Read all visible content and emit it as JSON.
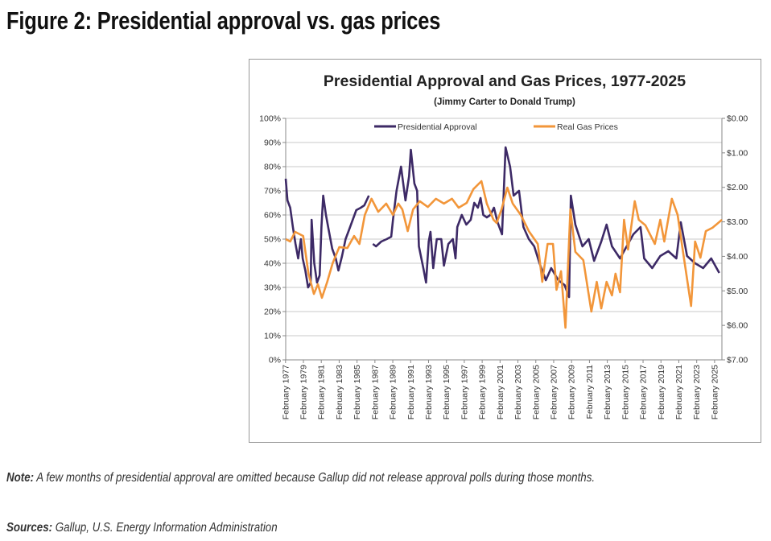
{
  "figure_title": "Figure 2: Presidential approval vs. gas prices",
  "note_label": "Note:",
  "note_text": " A few months of presidential approval are omitted because Gallup did not release approval polls during those months.",
  "sources_label": "Sources:",
  "sources_text": " Gallup, U.S. Energy Information Administration",
  "colors": {
    "approval": "#3d2a66",
    "gas": "#f2963a",
    "grid": "#c8c8c8"
  },
  "chart_data": {
    "type": "line",
    "title": "Presidential Approval and Gas Prices, 1977-2025",
    "subtitle": "(Jimmy Carter to Donald Trump)",
    "legend_position": "top-center",
    "grid": true,
    "y_left": {
      "label": "Presidential Approval",
      "ticks": [
        "0%",
        "10%",
        "20%",
        "30%",
        "40%",
        "50%",
        "60%",
        "70%",
        "80%",
        "90%",
        "100%"
      ],
      "range": [
        0,
        100
      ]
    },
    "y_right": {
      "label": "Real Gas Prices",
      "inverted": true,
      "ticks": [
        "$0.00",
        "$1.00",
        "$2.00",
        "$3.00",
        "$4.00",
        "$5.00",
        "$6.00",
        "$7.00"
      ],
      "range": [
        0,
        7
      ]
    },
    "x_range": [
      1977.1,
      2025.9
    ],
    "x_ticks": [
      "February 1977",
      "February 1979",
      "February 1981",
      "February 1983",
      "February 1985",
      "February 1987",
      "February 1989",
      "February 1991",
      "February 1993",
      "February 1995",
      "February 1997",
      "February 1999",
      "February 2001",
      "February 2003",
      "February 2005",
      "February 2007",
      "February 2009",
      "February 2011",
      "February 2013",
      "February 2015",
      "February 2017",
      "February 2019",
      "February 2021",
      "February 2023",
      "February 2025"
    ],
    "series": [
      {
        "name": "Presidential Approval",
        "axis": "left",
        "x": [
          1977.1,
          1977.3,
          1977.6,
          1977.9,
          1978.2,
          1978.5,
          1978.8,
          1979.0,
          1979.3,
          1979.6,
          1979.9,
          1980.0,
          1980.3,
          1980.6,
          1980.9,
          1981.1,
          1981.3,
          1981.6,
          1981.9,
          1982.3,
          1982.7,
          1983.0,
          1983.4,
          1983.8,
          1984.2,
          1984.6,
          1985.0,
          1985.5,
          1985.9,
          1986.4,
          1986.6,
          1986.85,
          1987.2,
          1987.8,
          1988.4,
          1988.9,
          1989.1,
          1989.5,
          1990.0,
          1990.5,
          1990.9,
          1991.1,
          1991.5,
          1991.8,
          1992.0,
          1992.5,
          1992.8,
          1993.1,
          1993.3,
          1993.6,
          1994.0,
          1994.5,
          1994.8,
          1995.3,
          1995.8,
          1996.1,
          1996.3,
          1996.8,
          1997.3,
          1997.8,
          1998.2,
          1998.6,
          1998.9,
          1999.2,
          1999.6,
          2000.0,
          2000.4,
          2000.8,
          2001.3,
          2001.7,
          2002.2,
          2002.6,
          2003.2,
          2003.7,
          2004.3,
          2004.9,
          2005.5,
          2006.2,
          2006.8,
          2007.6,
          2008.3,
          2008.8,
          2009.0,
          2009.5,
          2010.3,
          2011.0,
          2011.6,
          2012.4,
          2013.0,
          2013.6,
          2014.5,
          2015.1,
          2016.0,
          2016.8,
          2017.2,
          2018.1,
          2019.0,
          2019.9,
          2020.8,
          2021.3,
          2022.0,
          2022.9,
          2023.8,
          2024.7,
          2025.6
        ],
        "values": [
          75,
          66,
          63,
          55,
          48,
          42,
          50,
          42,
          37,
          30,
          32,
          58,
          40,
          32,
          35,
          55,
          68,
          60,
          54,
          46,
          42,
          37,
          43,
          50,
          54,
          58,
          62,
          63,
          64,
          68,
          null,
          48,
          47,
          49,
          50,
          51,
          58,
          70,
          80,
          66,
          76,
          87,
          73,
          70,
          47,
          38,
          32,
          49,
          53,
          38,
          50,
          50,
          39,
          48,
          50,
          42,
          55,
          60,
          56,
          58,
          65,
          63,
          67,
          60,
          59,
          60,
          63,
          57,
          52,
          88,
          80,
          68,
          70,
          55,
          50,
          47,
          40,
          33,
          38,
          33,
          31,
          26,
          68,
          56,
          47,
          50,
          41,
          49,
          56,
          47,
          42,
          46,
          52,
          55,
          42,
          38,
          43,
          45,
          42,
          57,
          43,
          40,
          38,
          42,
          36
        ]
      },
      {
        "name": "Real Gas Prices",
        "axis": "right",
        "x": [
          1977.1,
          1977.6,
          1978.15,
          1979.05,
          1979.65,
          1980.25,
          1980.7,
          1981.15,
          1981.75,
          1982.35,
          1983.1,
          1984.0,
          1984.75,
          1985.35,
          1985.95,
          1986.7,
          1987.45,
          1988.35,
          1989.1,
          1989.7,
          1990.15,
          1990.75,
          1991.35,
          1992.1,
          1993.0,
          1993.9,
          1994.8,
          1995.7,
          1996.45,
          1997.35,
          1998.1,
          1999.0,
          1999.6,
          2000.35,
          2000.7,
          2001.25,
          2001.9,
          2002.5,
          2003.4,
          2004.3,
          2005.3,
          2005.8,
          2006.4,
          2007.0,
          2007.4,
          2007.9,
          2008.4,
          2008.95,
          2009.5,
          2010.4,
          2011.3,
          2011.9,
          2012.4,
          2013.0,
          2013.6,
          2014.0,
          2014.5,
          2014.95,
          2015.4,
          2016.15,
          2016.6,
          2017.35,
          2018.4,
          2019.0,
          2019.45,
          2020.3,
          2020.95,
          2021.55,
          2022.45,
          2022.9,
          2023.5,
          2024.1,
          2024.85,
          2025.9
        ],
        "values": [
          3.5,
          3.57,
          3.29,
          3.41,
          4.5,
          5.09,
          4.81,
          5.2,
          4.74,
          4.2,
          3.73,
          3.76,
          3.41,
          3.64,
          2.8,
          2.33,
          2.71,
          2.47,
          2.8,
          2.47,
          2.64,
          3.27,
          2.64,
          2.4,
          2.57,
          2.33,
          2.47,
          2.33,
          2.59,
          2.45,
          2.05,
          1.82,
          2.47,
          2.94,
          3.03,
          2.64,
          2.01,
          2.47,
          2.8,
          3.27,
          3.64,
          4.74,
          3.64,
          3.64,
          4.97,
          4.43,
          6.07,
          2.64,
          3.87,
          4.11,
          5.6,
          4.74,
          5.51,
          4.74,
          5.13,
          4.5,
          5.04,
          2.94,
          3.8,
          2.4,
          2.94,
          3.1,
          3.64,
          2.94,
          3.57,
          2.33,
          2.8,
          3.87,
          5.44,
          3.57,
          4.04,
          3.27,
          3.17,
          2.94
        ]
      }
    ]
  }
}
